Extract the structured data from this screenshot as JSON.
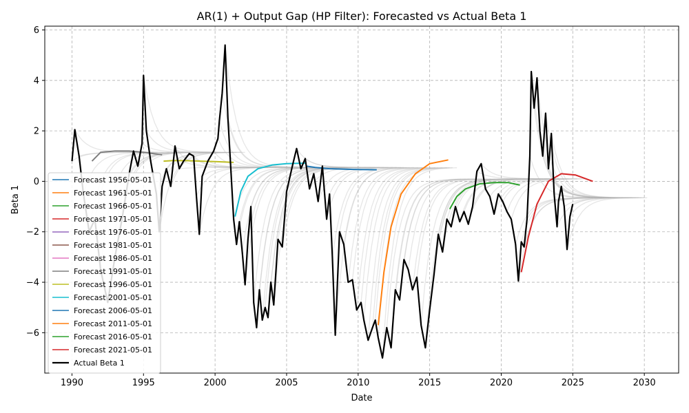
{
  "chart_data": {
    "type": "line",
    "title": "AR(1) + Output Gap (HP Filter): Forecasted vs Actual Beta 1",
    "xlabel": "Date",
    "ylabel": "Beta 1",
    "xlim": [
      1988.1,
      2032.4
    ],
    "ylim": [
      -7.6,
      6.15
    ],
    "x_ticks": [
      1990,
      1995,
      2000,
      2005,
      2010,
      2015,
      2020,
      2025,
      2030
    ],
    "y_ticks": [
      -6,
      -4,
      -2,
      0,
      2,
      4,
      6
    ],
    "grid": true,
    "legend_position": "lower-left",
    "colors": {
      "actual": "#000000",
      "background_forecasts": "#b0b0b0"
    },
    "series": [
      {
        "name": "Forecast 1956-05-01",
        "color": "#1f77b4",
        "x": [],
        "y": []
      },
      {
        "name": "Forecast 1961-05-01",
        "color": "#ff7f0e",
        "x": [],
        "y": []
      },
      {
        "name": "Forecast 1966-05-01",
        "color": "#2ca02c",
        "x": [],
        "y": []
      },
      {
        "name": "Forecast 1971-05-01",
        "color": "#d62728",
        "x": [],
        "y": []
      },
      {
        "name": "Forecast 1976-05-01",
        "color": "#9467bd",
        "x": [],
        "y": []
      },
      {
        "name": "Forecast 1981-05-01",
        "color": "#8c564b",
        "x": [],
        "y": []
      },
      {
        "name": "Forecast 1986-05-01",
        "color": "#e377c2",
        "x": [],
        "y": []
      },
      {
        "name": "Forecast 1991-05-01",
        "color": "#7f7f7f",
        "x": [
          1991.4,
          1992,
          1993,
          1994,
          1995,
          1996.3
        ],
        "y": [
          0.8,
          1.15,
          1.2,
          1.2,
          1.15,
          1.05
        ]
      },
      {
        "name": "Forecast 1996-05-01",
        "color": "#bcbd22",
        "x": [
          1996.4,
          1997,
          1998,
          1999,
          2000,
          2001.3
        ],
        "y": [
          0.8,
          0.82,
          0.82,
          0.8,
          0.78,
          0.75
        ]
      },
      {
        "name": "Forecast 2001-05-01",
        "color": "#17becf",
        "x": [
          2001.4,
          2001.8,
          2002.3,
          2003,
          2004,
          2005,
          2006.3
        ],
        "y": [
          -1.4,
          -0.4,
          0.2,
          0.5,
          0.65,
          0.7,
          0.72
        ]
      },
      {
        "name": "Forecast 2006-05-01",
        "color": "#1f77b4",
        "x": [
          2006.4,
          2007,
          2008,
          2009,
          2010,
          2011.3
        ],
        "y": [
          0.6,
          0.55,
          0.5,
          0.48,
          0.47,
          0.46
        ]
      },
      {
        "name": "Forecast 2011-05-01",
        "color": "#ff7f0e",
        "x": [
          2011.4,
          2011.8,
          2012.3,
          2013,
          2014,
          2015,
          2016.3
        ],
        "y": [
          -5.7,
          -3.6,
          -1.8,
          -0.5,
          0.3,
          0.7,
          0.85
        ]
      },
      {
        "name": "Forecast 2016-05-01",
        "color": "#2ca02c",
        "x": [
          2016.4,
          2016.9,
          2017.5,
          2018.5,
          2019.5,
          2020.5,
          2021.3
        ],
        "y": [
          -1.1,
          -0.6,
          -0.3,
          -0.1,
          -0.05,
          -0.05,
          -0.15
        ]
      },
      {
        "name": "Forecast 2021-05-01",
        "color": "#d62728",
        "x": [
          2021.4,
          2021.9,
          2022.5,
          2023.3,
          2024.2,
          2025.2,
          2026.4
        ],
        "y": [
          -3.6,
          -2.2,
          -0.9,
          0.0,
          0.3,
          0.25,
          0.0
        ]
      }
    ],
    "actual": {
      "name": "Actual Beta 1",
      "color": "#000000",
      "x": [
        1990.0,
        1990.2,
        1990.5,
        1990.8,
        1991.2,
        1991.6,
        1992.0,
        1992.5,
        1993.0,
        1993.5,
        1994.0,
        1994.3,
        1994.6,
        1994.9,
        1995.0,
        1995.2,
        1995.5,
        1995.9,
        1996.1,
        1996.3,
        1996.6,
        1996.9,
        1997.2,
        1997.5,
        1997.8,
        1998.2,
        1998.5,
        1998.7,
        1998.9,
        1999.1,
        1999.5,
        1999.9,
        2000.2,
        2000.3,
        2000.5,
        2000.7,
        2000.9,
        2001.1,
        2001.3,
        2001.5,
        2001.7,
        2001.9,
        2002.1,
        2002.3,
        2002.5,
        2002.7,
        2002.9,
        2003.1,
        2003.3,
        2003.5,
        2003.7,
        2003.9,
        2004.1,
        2004.4,
        2004.7,
        2005.0,
        2005.4,
        2005.7,
        2006.0,
        2006.3,
        2006.6,
        2006.9,
        2007.2,
        2007.5,
        2007.8,
        2008.0,
        2008.2,
        2008.4,
        2008.7,
        2009.0,
        2009.3,
        2009.6,
        2009.9,
        2010.2,
        2010.4,
        2010.7,
        2011.0,
        2011.2,
        2011.4,
        2011.7,
        2012.0,
        2012.3,
        2012.6,
        2012.9,
        2013.2,
        2013.5,
        2013.8,
        2014.1,
        2014.4,
        2014.7,
        2015.0,
        2015.3,
        2015.6,
        2015.9,
        2016.2,
        2016.5,
        2016.8,
        2017.1,
        2017.4,
        2017.7,
        2018.0,
        2018.3,
        2018.6,
        2018.9,
        2019.2,
        2019.5,
        2019.8,
        2020.1,
        2020.4,
        2020.7,
        2021.0,
        2021.2,
        2021.4,
        2021.6,
        2021.8,
        2022.0,
        2022.1,
        2022.3,
        2022.5,
        2022.7,
        2022.9,
        2023.1,
        2023.3,
        2023.5,
        2023.7,
        2023.9,
        2024.0,
        2024.2,
        2024.4,
        2024.6,
        2024.8,
        2025.0
      ],
      "y": [
        0.8,
        2.05,
        1.0,
        -0.5,
        -2.0,
        -1.5,
        -3.5,
        -4.8,
        -3.0,
        -1.5,
        0.3,
        1.2,
        0.6,
        1.5,
        4.2,
        2.0,
        0.8,
        -0.5,
        -2.0,
        -0.2,
        0.5,
        -0.2,
        1.4,
        0.5,
        0.8,
        1.1,
        1.0,
        -0.6,
        -2.1,
        0.2,
        0.8,
        1.2,
        1.7,
        2.4,
        3.5,
        5.4,
        2.5,
        0.5,
        -1.5,
        -2.5,
        -1.6,
        -2.8,
        -4.1,
        -2.3,
        -1.0,
        -4.8,
        -5.8,
        -4.3,
        -5.5,
        -5.0,
        -5.4,
        -4.0,
        -4.9,
        -2.3,
        -2.6,
        -0.4,
        0.6,
        1.3,
        0.5,
        0.9,
        -0.3,
        0.3,
        -0.8,
        0.6,
        -1.5,
        -0.5,
        -3.0,
        -6.1,
        -2.0,
        -2.5,
        -4.0,
        -3.9,
        -5.1,
        -4.8,
        -5.5,
        -6.3,
        -5.8,
        -5.5,
        -6.2,
        -7.0,
        -5.8,
        -6.6,
        -4.3,
        -4.7,
        -3.1,
        -3.5,
        -4.3,
        -3.8,
        -5.7,
        -6.6,
        -5.1,
        -3.7,
        -2.1,
        -2.8,
        -1.5,
        -1.8,
        -1.0,
        -1.6,
        -1.2,
        -1.7,
        -1.0,
        0.4,
        0.7,
        -0.3,
        -0.6,
        -1.3,
        -0.5,
        -0.8,
        -1.2,
        -1.5,
        -2.5,
        -3.95,
        -2.4,
        -2.6,
        -1.5,
        1.0,
        4.35,
        2.9,
        4.1,
        2.0,
        1.0,
        2.7,
        0.5,
        1.9,
        -0.5,
        -1.8,
        -0.8,
        -0.2,
        -1.0,
        -2.7,
        -1.4,
        -0.9
      ]
    },
    "legend": [
      "Forecast 1956-05-01",
      "Forecast 1961-05-01",
      "Forecast 1966-05-01",
      "Forecast 1971-05-01",
      "Forecast 1976-05-01",
      "Forecast 1981-05-01",
      "Forecast 1986-05-01",
      "Forecast 1991-05-01",
      "Forecast 1996-05-01",
      "Forecast 2001-05-01",
      "Forecast 2006-05-01",
      "Forecast 2011-05-01",
      "Forecast 2016-05-01",
      "Forecast 2021-05-01",
      "Actual Beta 1"
    ]
  }
}
